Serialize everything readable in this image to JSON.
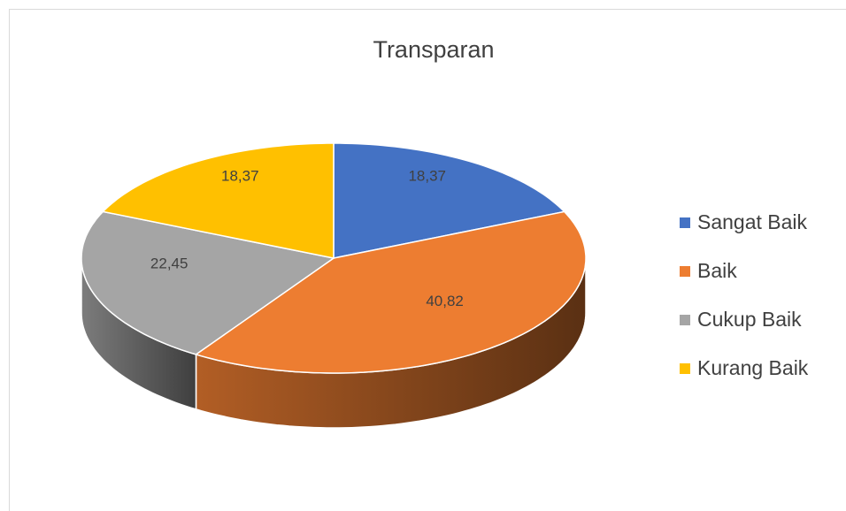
{
  "chart_data": {
    "type": "pie3d",
    "title": "Transparan",
    "categories": [
      "Sangat Baik",
      "Baik",
      "Cukup Baik",
      "Kurang Baik"
    ],
    "values": [
      18.37,
      40.82,
      22.45,
      18.37
    ],
    "value_labels": [
      "18,37",
      "40,82",
      "22,45",
      "18,37"
    ],
    "colors": [
      "#4472c4",
      "#ed7d31",
      "#a5a5a5",
      "#ffc000"
    ],
    "legend": "right"
  }
}
